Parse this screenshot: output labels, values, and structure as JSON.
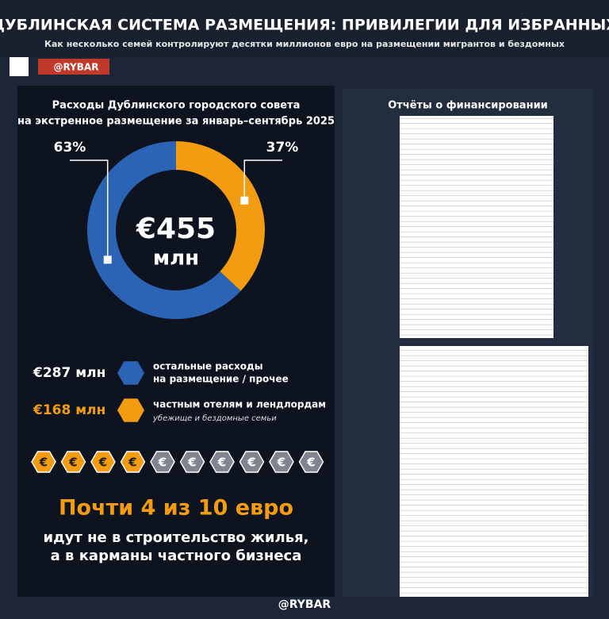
{
  "header": {
    "title": "ДУБЛИНСКАЯ СИСТЕМА РАЗМЕЩЕНИЯ: ПРИВИЛЕГИИ ДЛЯ ИЗБРАННЫХ",
    "subtitle": "Как несколько семей контролируют десятки миллионов евро на размещении мигрантов и бездомных",
    "brand": "@RYBAR"
  },
  "chart_data": {
    "type": "pie",
    "title": [
      "Расходы Дублинского городского совета",
      "на экстренное размещение за январь–сентябрь 2025"
    ],
    "center_label": [
      "€455",
      "млн"
    ],
    "categories": [
      [
        "остальные расходы",
        "на размещение / прочее"
      ],
      [
        "частным отелям и лендлордам"
      ]
    ],
    "notes": [
      null,
      "убежище и бездомные семьи"
    ],
    "amounts": [
      "€287 млн",
      "€168 млн"
    ],
    "values": [
      63,
      37
    ],
    "value_labels": [
      "63%",
      "37%"
    ],
    "colors": [
      "#2b63b5",
      "#f39c12"
    ]
  },
  "icons": {
    "symbol": "€",
    "filled": 4,
    "total": 10
  },
  "conclusion": {
    "headline": "Почти 4 из 10 евро",
    "text": [
      "идут не в строительство жилья,",
      "а в карманы частного бизнеса"
    ]
  },
  "reports": {
    "title": "Отчёты о финансировании"
  },
  "footer": {
    "brand": "@RYBAR"
  }
}
